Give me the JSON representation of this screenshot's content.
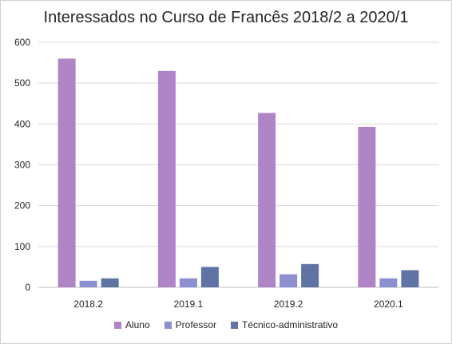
{
  "chart_data": {
    "type": "bar",
    "title": "Interessados  no Curso de Francês 2018/2 a 2020/1",
    "categories": [
      "2018.2",
      "2019.1",
      "2019.2",
      "2020.1"
    ],
    "series": [
      {
        "name": "Aluno",
        "color": "#b085c8",
        "values": [
          560,
          530,
          427,
          393
        ]
      },
      {
        "name": "Professor",
        "color": "#8c8fd0",
        "values": [
          16,
          22,
          32,
          22
        ]
      },
      {
        "name": "Técnico-administrativo",
        "color": "#5f74a4",
        "values": [
          22,
          50,
          57,
          42
        ]
      }
    ],
    "yticks": [
      "0",
      "100",
      "200",
      "300",
      "400",
      "500",
      "600"
    ],
    "ylim": [
      0,
      600
    ],
    "grid": true,
    "legend_position": "bottom"
  }
}
